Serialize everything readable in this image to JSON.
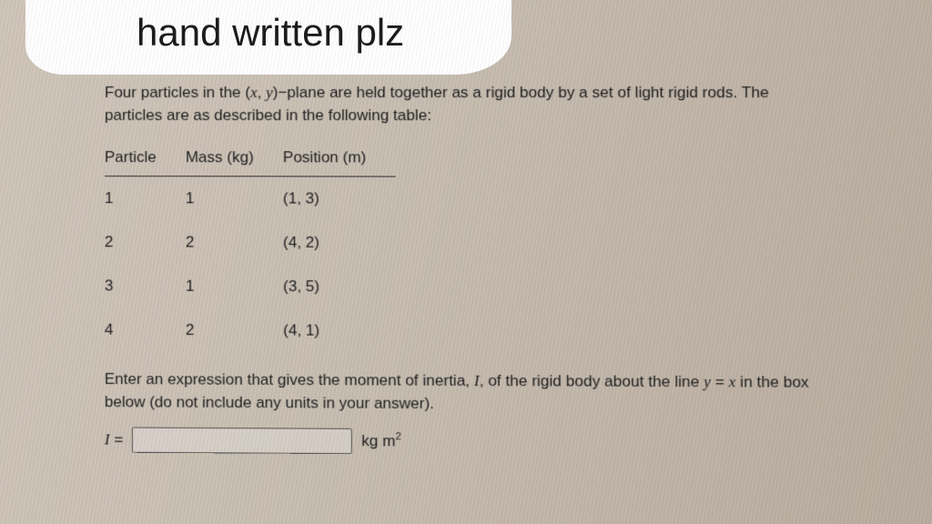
{
  "handwritten_title": "hand written plz",
  "prompt_line1_a": "Four particles in the (",
  "prompt_line1_b": ")−plane are held together as a rigid body by a set of light rigid rods. The",
  "prompt_line2": "particles are as described in the following table:",
  "var_x": "x",
  "var_y": "y",
  "comma_sep": ", ",
  "table": {
    "headers": [
      "Particle",
      "Mass (kg)",
      "Position (m)"
    ],
    "rows": [
      [
        "1",
        "1",
        "(1, 3)"
      ],
      [
        "2",
        "2",
        "(4, 2)"
      ],
      [
        "3",
        "1",
        "(3, 5)"
      ],
      [
        "4",
        "2",
        "(4, 1)"
      ]
    ]
  },
  "question_a": "Enter an expression that gives the moment of inertia, ",
  "question_I": "I",
  "question_b": ", of the rigid body about the line ",
  "question_eq_lhs": "y",
  "question_eq_mid": " = ",
  "question_eq_rhs": "x",
  "question_c": " in the box",
  "question_line2": "below (do not include any units in your answer).",
  "answer_label_I": "I",
  "answer_label_eq": " = ",
  "answer_value": "",
  "unit_prefix": "kg m",
  "unit_exp": "2",
  "colors": {
    "text": "#1c1c1c",
    "cutout_bg": "#ffffff",
    "screen_bg_start": "#d0c6ba",
    "screen_bg_end": "#b8ad9f",
    "input_border": "#555555"
  }
}
